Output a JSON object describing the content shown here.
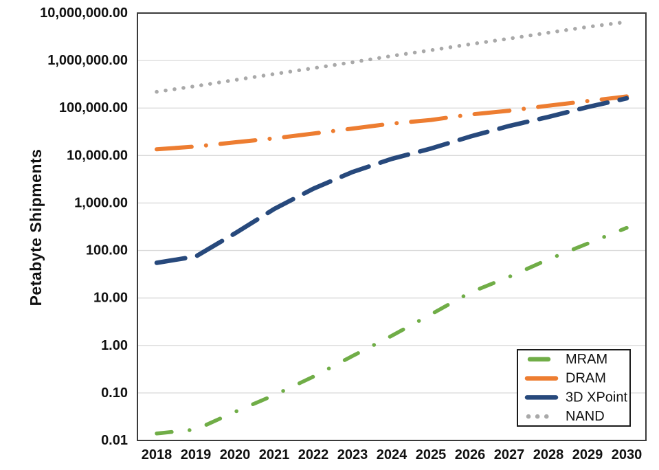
{
  "chart_data": {
    "type": "line",
    "title": "",
    "ylabel": "Petabyte Shipments",
    "xlabel": "",
    "x_labels": [
      "2018",
      "2019",
      "2020",
      "2021",
      "2022",
      "2023",
      "2024",
      "2025",
      "2026",
      "2027",
      "2028",
      "2029",
      "2030"
    ],
    "y_axis": {
      "scale": "log",
      "min": 0.01,
      "max": 10000000,
      "tick_labels": [
        "10,000,000.00",
        "1,000,000.00",
        "100,000.00",
        "10,000.00",
        "1,000.00",
        "100.00",
        "10.00",
        "1.00",
        "0.10",
        "0.01"
      ]
    },
    "grid": true,
    "legend_position": "bottom-right",
    "legend_entries": [
      "MRAM",
      "DRAM",
      "3D XPoint",
      "NAND"
    ],
    "series": [
      {
        "name": "MRAM",
        "color": "#70AD47",
        "dash": "dash-dot",
        "values": [
          0.014,
          0.017,
          0.04,
          0.09,
          0.22,
          0.6,
          1.6,
          4.5,
          13,
          28,
          65,
          140,
          300
        ]
      },
      {
        "name": "DRAM",
        "color": "#ED7D31",
        "dash": "long-dash-dot",
        "values": [
          13500,
          15500,
          19000,
          23000,
          29000,
          37000,
          47000,
          56000,
          73000,
          88000,
          112000,
          140000,
          175000
        ]
      },
      {
        "name": "3D XPoint",
        "color": "#27497C",
        "dash": "long-dash",
        "values": [
          55,
          75,
          230,
          750,
          2000,
          4500,
          8500,
          14000,
          25000,
          42000,
          65000,
          105000,
          160000
        ]
      },
      {
        "name": "NAND",
        "color": "#A9A9A9",
        "dash": "round-dot",
        "values": [
          220000,
          290000,
          390000,
          520000,
          690000,
          920000,
          1250000,
          1650000,
          2200000,
          2900000,
          3850000,
          5100000,
          6500000
        ]
      }
    ],
    "colors": {
      "gridline": "#D9D9D9",
      "plot_border": "#3A3A3A",
      "axis_text": "#111111",
      "legend_border": "#1A1A1A",
      "background": "#FFFFFF"
    }
  }
}
